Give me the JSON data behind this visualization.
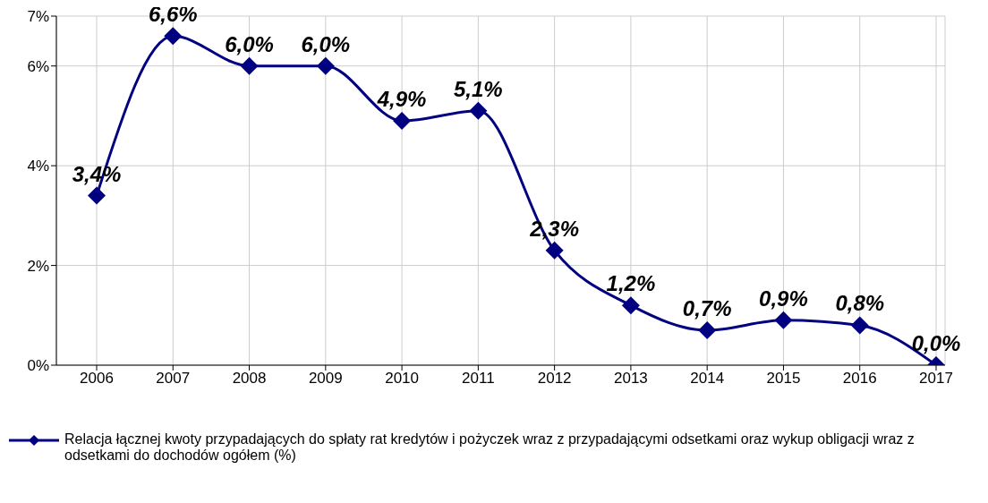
{
  "chart_data": {
    "type": "line",
    "categories": [
      "2006",
      "2007",
      "2008",
      "2009",
      "2010",
      "2011",
      "2012",
      "2013",
      "2014",
      "2015",
      "2016",
      "2017"
    ],
    "series": [
      {
        "name": "Relacja łącznej kwoty przypadających do spłaty rat kredytów i pożyczek wraz z przypadającymi odsetkami oraz wykup obligacji wraz z odsetkami do dochodów ogółem (%)",
        "color": "#000080",
        "values": [
          3.4,
          6.6,
          6.0,
          6.0,
          4.9,
          5.1,
          2.3,
          1.2,
          0.7,
          0.9,
          0.8,
          0.0
        ],
        "value_labels": [
          "3,4%",
          "6,6%",
          "6,0%",
          "6,0%",
          "4,9%",
          "5,1%",
          "2,3%",
          "1,2%",
          "0,7%",
          "0,9%",
          "0,8%",
          "0,0%"
        ]
      }
    ],
    "ylim": [
      0,
      7
    ],
    "yticks": [
      {
        "value": 0,
        "label": "0%"
      },
      {
        "value": 2,
        "label": "2%"
      },
      {
        "value": 4,
        "label": "4%"
      },
      {
        "value": 6,
        "label": "6%"
      },
      {
        "value": 7,
        "label": "7%"
      }
    ],
    "grid": true,
    "legend": "bottom",
    "marker": "diamond",
    "line_style": "solid"
  }
}
